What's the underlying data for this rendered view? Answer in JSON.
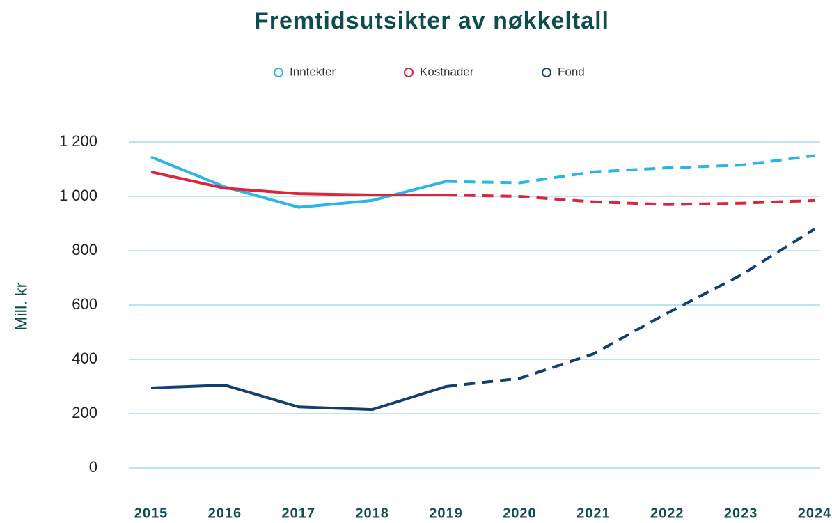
{
  "chart_data": {
    "type": "line",
    "title": "Fremtidsutsikter av nøkkeltall",
    "y_label": "Mill. kr",
    "categories": [
      "2015",
      "2016",
      "2017",
      "2018",
      "2019",
      "2020",
      "2021",
      "2022",
      "2023",
      "2024"
    ],
    "series": [
      {
        "name": "Inntekter",
        "color": "#29b5e8",
        "values": [
          1145,
          1035,
          960,
          985,
          1055,
          1050,
          1090,
          1105,
          1115,
          1150
        ]
      },
      {
        "name": "Kostnader",
        "color": "#d7263d",
        "values": [
          1090,
          1030,
          1010,
          1005,
          1005,
          1000,
          980,
          970,
          975,
          985
        ]
      },
      {
        "name": "Fond",
        "color": "#123f6e",
        "values": [
          295,
          305,
          225,
          215,
          300,
          330,
          420,
          570,
          710,
          880
        ]
      }
    ],
    "dashed_from": "2019",
    "ylim": [
      0,
      1200
    ],
    "yticks": [
      0,
      200,
      400,
      600,
      800,
      {
        "value": 1000,
        "label": "1 000"
      },
      {
        "value": 1200,
        "label": "1 200"
      }
    ],
    "grid": true,
    "legend": "top"
  }
}
